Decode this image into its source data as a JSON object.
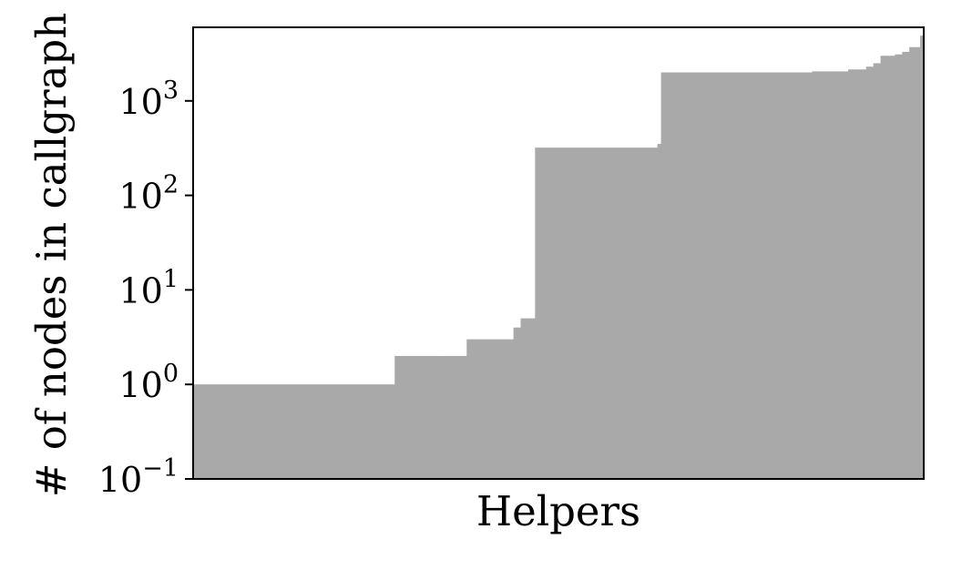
{
  "chart_data": {
    "type": "bar",
    "title": "",
    "xlabel": "Helpers",
    "ylabel": "# of nodes in callgraph",
    "yscale": "log",
    "ylim": [
      0.1,
      6000
    ],
    "ytick_values": [
      0.1,
      1,
      10,
      100,
      1000
    ],
    "ytick_labels": [
      {
        "base": "10",
        "exp": "−1"
      },
      {
        "base": "10",
        "exp": "0"
      },
      {
        "base": "10",
        "exp": "1"
      },
      {
        "base": "10",
        "exp": "2"
      },
      {
        "base": "10",
        "exp": "3"
      }
    ],
    "xticks": [],
    "grid": false,
    "bar_color": "#a9a9a9",
    "axis_color": "#000000",
    "segments": [
      {
        "count": 56,
        "value": 1
      },
      {
        "count": 20,
        "value": 2
      },
      {
        "count": 13,
        "value": 3
      },
      {
        "count": 2,
        "value": 4
      },
      {
        "count": 4,
        "value": 5
      },
      {
        "count": 34,
        "value": 320
      },
      {
        "count": 1,
        "value": 350
      },
      {
        "count": 42,
        "value": 2000
      },
      {
        "count": 10,
        "value": 2050
      },
      {
        "count": 5,
        "value": 2150
      },
      {
        "count": 2,
        "value": 2300
      },
      {
        "count": 2,
        "value": 2500
      },
      {
        "count": 4,
        "value": 3000
      },
      {
        "count": 2,
        "value": 3100
      },
      {
        "count": 2,
        "value": 3300
      },
      {
        "count": 3,
        "value": 3700
      },
      {
        "count": 1,
        "value": 4900
      }
    ]
  }
}
